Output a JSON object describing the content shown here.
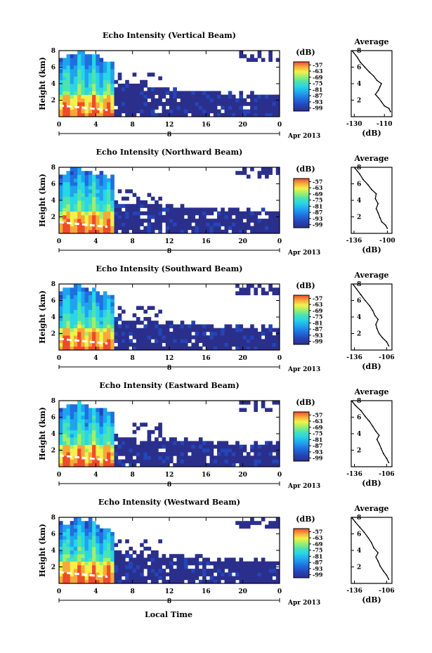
{
  "figure": {
    "xlabel": "Local Time",
    "date_label": "Apr 2013",
    "colorbar_unit": "(dB)",
    "colormap": [
      "#2b2f8c",
      "#2445b8",
      "#1f6fe0",
      "#1fa3f0",
      "#28d6e6",
      "#4de3b0",
      "#9ef06a",
      "#f2f24a",
      "#f7a83a",
      "#ef4a2c"
    ]
  },
  "chart_data": [
    {
      "type": "heatmap",
      "title": "Echo Intensity (Vertical Beam)",
      "ylabel": "Height (km)",
      "x_ticks": [
        "0",
        "4",
        "8",
        "12",
        "16",
        "20",
        "0"
      ],
      "x_day_label": "8",
      "y_ticks": [
        "2",
        "4",
        "6",
        "8"
      ],
      "ylim": [
        0,
        8
      ],
      "colorbar_ticks": [
        "-57",
        "-63",
        "-69",
        "-75",
        "-81",
        "-87",
        "-93",
        "-99"
      ],
      "profile": {
        "title": "Average",
        "xlabel": "(dB)",
        "x_ticks": [
          "-130",
          "-110"
        ],
        "xlim": [
          -132,
          -105
        ],
        "y_ticks": [
          "2",
          "4",
          "6",
          "8"
        ],
        "ylim": [
          0,
          8
        ],
        "points": [
          [
            -106,
            0.6
          ],
          [
            -107,
            1.0
          ],
          [
            -110,
            1.3
          ],
          [
            -112,
            1.8
          ],
          [
            -114,
            2.3
          ],
          [
            -116,
            2.7
          ],
          [
            -114,
            3.2
          ],
          [
            -113,
            3.6
          ],
          [
            -112,
            4.0
          ],
          [
            -115,
            4.4
          ],
          [
            -117,
            4.9
          ],
          [
            -120,
            5.4
          ],
          [
            -123,
            6.0
          ],
          [
            -126,
            6.6
          ],
          [
            -128,
            7.2
          ],
          [
            -131,
            7.9
          ]
        ]
      }
    },
    {
      "type": "heatmap",
      "title": "Echo Intensity (Northward Beam)",
      "ylabel": "Height (km)",
      "x_ticks": [
        "0",
        "4",
        "8",
        "12",
        "16",
        "20",
        "0"
      ],
      "x_day_label": "8",
      "y_ticks": [
        "2",
        "4",
        "6",
        "8"
      ],
      "ylim": [
        0,
        8
      ],
      "colorbar_ticks": [
        "-57",
        "-63",
        "-69",
        "-75",
        "-81",
        "-87",
        "-93",
        "-99"
      ],
      "profile": {
        "title": "Average",
        "xlabel": "(dB)",
        "x_ticks": [
          "-136",
          "-100"
        ],
        "xlim": [
          -139,
          -95
        ],
        "y_ticks": [
          "2",
          "4",
          "6",
          "8"
        ],
        "ylim": [
          0,
          8
        ],
        "points": [
          [
            -100,
            0.6
          ],
          [
            -102,
            1.0
          ],
          [
            -106,
            1.4
          ],
          [
            -108,
            1.9
          ],
          [
            -110,
            2.5
          ],
          [
            -112,
            3.0
          ],
          [
            -110,
            3.6
          ],
          [
            -113,
            4.2
          ],
          [
            -112,
            4.8
          ],
          [
            -117,
            5.3
          ],
          [
            -121,
            5.9
          ],
          [
            -126,
            6.5
          ],
          [
            -130,
            7.2
          ],
          [
            -135,
            7.9
          ]
        ]
      }
    },
    {
      "type": "heatmap",
      "title": "Echo Intensity (Southward Beam)",
      "ylabel": "Height (km)",
      "x_ticks": [
        "0",
        "4",
        "8",
        "12",
        "16",
        "20",
        "0"
      ],
      "x_day_label": "8",
      "y_ticks": [
        "2",
        "4",
        "6",
        "8"
      ],
      "ylim": [
        0,
        8
      ],
      "colorbar_ticks": [
        "-57",
        "-63",
        "-69",
        "-75",
        "-81",
        "-87",
        "-93",
        "-99"
      ],
      "profile": {
        "title": "Average",
        "xlabel": "(dB)",
        "x_ticks": [
          "-136",
          "-106"
        ],
        "xlim": [
          -139,
          -101
        ],
        "y_ticks": [
          "2",
          "4",
          "6",
          "8"
        ],
        "ylim": [
          0,
          8
        ],
        "points": [
          [
            -104,
            0.5
          ],
          [
            -106,
            1.0
          ],
          [
            -110,
            1.5
          ],
          [
            -113,
            2.0
          ],
          [
            -115,
            2.6
          ],
          [
            -116,
            3.1
          ],
          [
            -114,
            3.7
          ],
          [
            -117,
            4.2
          ],
          [
            -119,
            4.8
          ],
          [
            -122,
            5.4
          ],
          [
            -126,
            6.0
          ],
          [
            -130,
            6.7
          ],
          [
            -134,
            7.4
          ],
          [
            -137,
            7.9
          ]
        ]
      }
    },
    {
      "type": "heatmap",
      "title": "Echo Intensity (Eastward Beam)",
      "ylabel": "Height (km)",
      "x_ticks": [
        "0",
        "4",
        "8",
        "12",
        "16",
        "20",
        "0"
      ],
      "x_day_label": "8",
      "y_ticks": [
        "2",
        "4",
        "6",
        "8"
      ],
      "ylim": [
        0,
        8
      ],
      "colorbar_ticks": [
        "-57",
        "-63",
        "-69",
        "-75",
        "-81",
        "-87",
        "-93",
        "-99"
      ],
      "profile": {
        "title": "Average",
        "xlabel": "(dB)",
        "x_ticks": [
          "-136",
          "-106"
        ],
        "xlim": [
          -139,
          -101
        ],
        "y_ticks": [
          "2",
          "4",
          "6",
          "8"
        ],
        "ylim": [
          0,
          8
        ],
        "points": [
          [
            -104,
            0.5
          ],
          [
            -106,
            1.0
          ],
          [
            -109,
            1.6
          ],
          [
            -111,
            2.2
          ],
          [
            -113,
            2.8
          ],
          [
            -115,
            3.3
          ],
          [
            -113,
            3.8
          ],
          [
            -116,
            4.3
          ],
          [
            -119,
            4.9
          ],
          [
            -122,
            5.5
          ],
          [
            -126,
            6.1
          ],
          [
            -130,
            6.8
          ],
          [
            -135,
            7.4
          ],
          [
            -138,
            7.9
          ]
        ]
      }
    },
    {
      "type": "heatmap",
      "title": "Echo Intensity (Westward Beam)",
      "ylabel": "Height (km)",
      "x_ticks": [
        "0",
        "4",
        "8",
        "12",
        "16",
        "20",
        "0"
      ],
      "x_day_label": "8",
      "y_ticks": [
        "2",
        "4",
        "6",
        "8"
      ],
      "ylim": [
        0,
        8
      ],
      "colorbar_ticks": [
        "-57",
        "-63",
        "-69",
        "-75",
        "-81",
        "-87",
        "-93",
        "-99"
      ],
      "profile": {
        "title": "Average",
        "xlabel": "(dB)",
        "x_ticks": [
          "-136",
          "-106"
        ],
        "xlim": [
          -139,
          -101
        ],
        "y_ticks": [
          "2",
          "4",
          "6",
          "8"
        ],
        "ylim": [
          0,
          8
        ],
        "points": [
          [
            -104,
            0.5
          ],
          [
            -106,
            1.0
          ],
          [
            -109,
            1.5
          ],
          [
            -112,
            2.1
          ],
          [
            -114,
            2.7
          ],
          [
            -116,
            3.2
          ],
          [
            -114,
            3.7
          ],
          [
            -118,
            4.3
          ],
          [
            -120,
            4.9
          ],
          [
            -123,
            5.5
          ],
          [
            -127,
            6.2
          ],
          [
            -131,
            6.8
          ],
          [
            -135,
            7.4
          ],
          [
            -138,
            7.9
          ]
        ]
      }
    }
  ]
}
